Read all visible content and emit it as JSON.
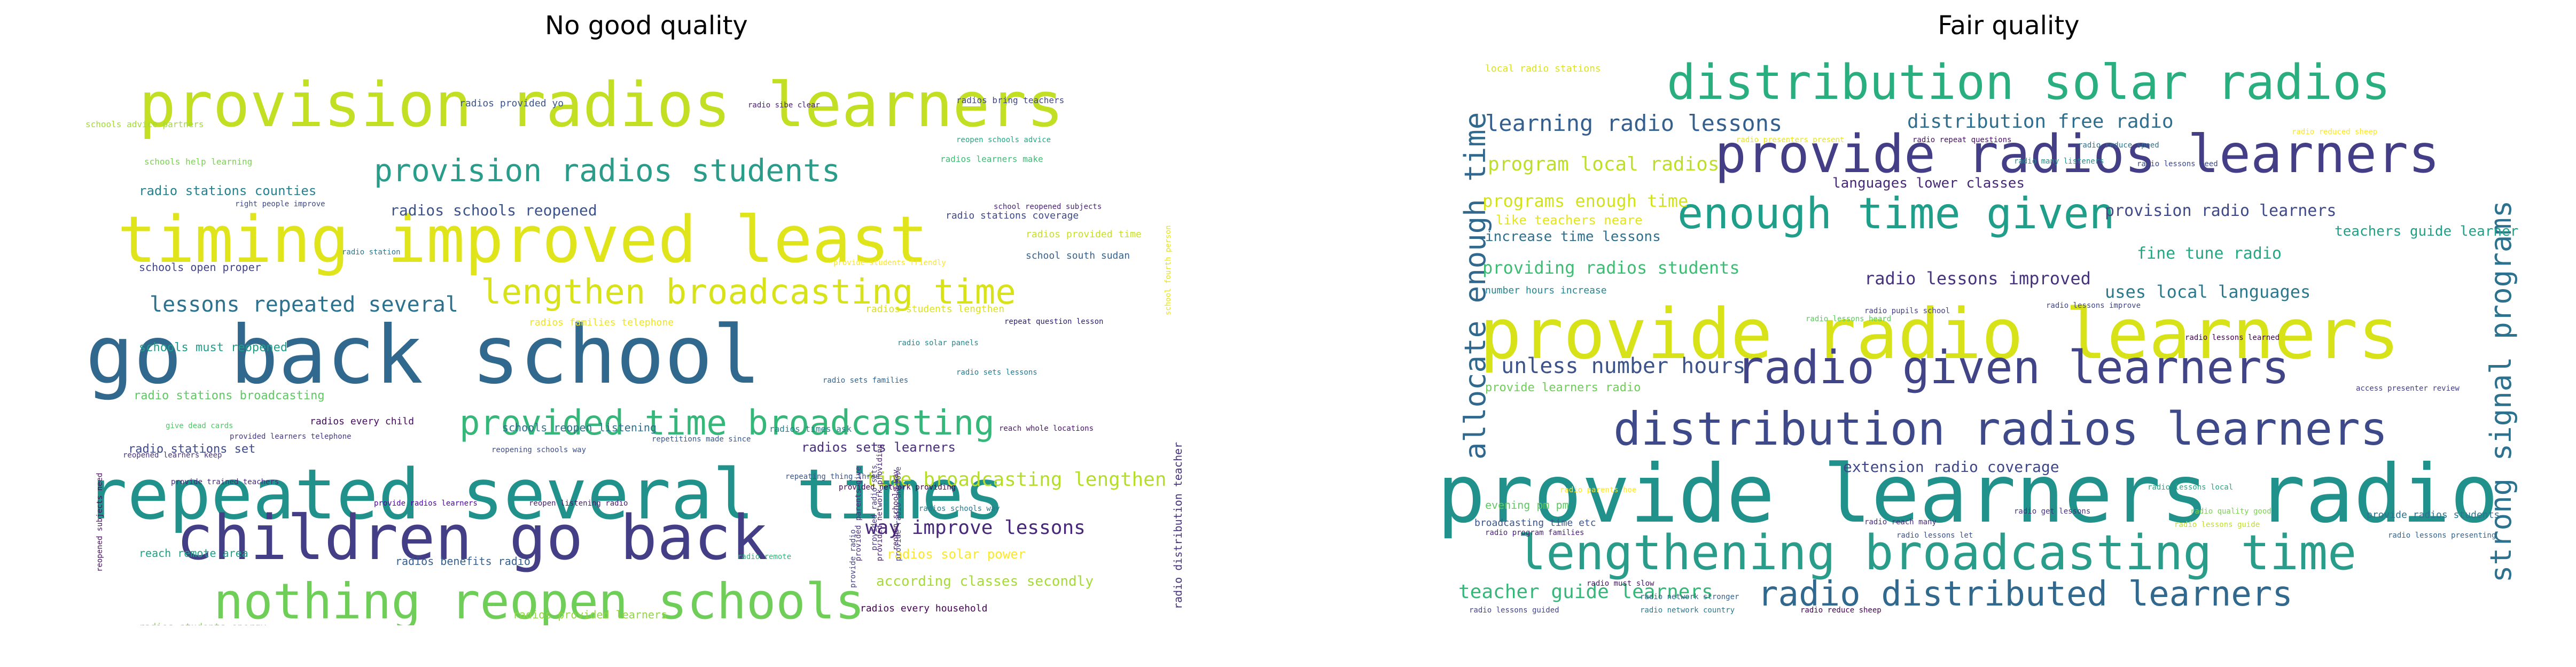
{
  "panels": [
    {
      "title": "No good quality",
      "words": [
        {
          "text": "repeated several times",
          "size": 130,
          "color": "#21918c"
        },
        {
          "text": "go back school",
          "size": 150,
          "color": "#31688e"
        },
        {
          "text": "timing improved least",
          "size": 120,
          "color": "#e0e41a"
        },
        {
          "text": "provision radios learners",
          "size": 115,
          "color": "#c2df23"
        },
        {
          "text": "children go back",
          "size": 115,
          "color": "#433e85"
        },
        {
          "text": "nothing reopen schools",
          "size": 92,
          "color": "#6ece58"
        },
        {
          "text": "provided time broadcasting",
          "size": 64,
          "color": "#35b779"
        },
        {
          "text": "lengthen broadcasting time",
          "size": 64,
          "color": "#d8e219"
        },
        {
          "text": "provision radios students",
          "size": 58,
          "color": "#2a9d8a"
        },
        {
          "text": "lessons repeated several",
          "size": 40,
          "color": "#2c728e"
        },
        {
          "text": "time broadcasting lengthen",
          "size": 36,
          "color": "#b5de2b"
        },
        {
          "text": "way improve lessons",
          "size": 36,
          "color": "#482878"
        },
        {
          "text": "radios schools reopened",
          "size": 28,
          "color": "#3b528b"
        },
        {
          "text": "radio stations counties",
          "size": 24,
          "color": "#26828e"
        },
        {
          "text": "according classes secondly",
          "size": 26,
          "color": "#a5db36"
        },
        {
          "text": "radios solar power",
          "size": 24,
          "color": "#fde725"
        },
        {
          "text": "radios sets learners",
          "size": 24,
          "color": "#472d7b"
        },
        {
          "text": "radio stations broadcasting",
          "size": 22,
          "color": "#5ec962"
        },
        {
          "text": "schools must reopened",
          "size": 22,
          "color": "#1f9e89"
        },
        {
          "text": "radio stations set",
          "size": 22,
          "color": "#3e4989"
        },
        {
          "text": "reach remote area",
          "size": 20,
          "color": "#1fa187"
        },
        {
          "text": "schools open proper",
          "size": 20,
          "color": "#414487"
        },
        {
          "text": "radios benefits radio",
          "size": 20,
          "color": "#355f8d"
        },
        {
          "text": "schools reopen listening",
          "size": 20,
          "color": "#2e6e8e"
        },
        {
          "text": "radio distribution teacher",
          "size": 20,
          "color": "#46327e"
        },
        {
          "text": "radios provided learners",
          "size": 20,
          "color": "#90d743"
        },
        {
          "text": "radios every household",
          "size": 18,
          "color": "#440154"
        },
        {
          "text": "radios stations part",
          "size": 20,
          "color": "#bddf26"
        },
        {
          "text": "radios distributed schools",
          "size": 18,
          "color": "#d2e21b"
        },
        {
          "text": "radios students energy",
          "size": 18,
          "color": "#86d549"
        },
        {
          "text": "radios provided time",
          "size": 18,
          "color": "#c8e020"
        },
        {
          "text": "radio stations coverage",
          "size": 18,
          "color": "#3f4788"
        },
        {
          "text": "school south sudan",
          "size": 18,
          "color": "#34618d"
        },
        {
          "text": "radios students lengthen",
          "size": 18,
          "color": "#dde318"
        },
        {
          "text": "radios families telephone",
          "size": 18,
          "color": "#efe51c"
        },
        {
          "text": "radios provided yo",
          "size": 18,
          "color": "#3a548c"
        },
        {
          "text": "radios bring teachers",
          "size": 16,
          "color": "#404588"
        },
        {
          "text": "radio sibe clear",
          "size": 14,
          "color": "#481f70"
        },
        {
          "text": "radios learners make",
          "size": 16,
          "color": "#3dbc74"
        },
        {
          "text": "schools advice partners",
          "size": 16,
          "color": "#a2da37"
        },
        {
          "text": "schools help learning",
          "size": 16,
          "color": "#7ad151"
        },
        {
          "text": "reopen schools advice",
          "size": 14,
          "color": "#22a884"
        },
        {
          "text": "right people improve",
          "size": 14,
          "color": "#3e4a89"
        },
        {
          "text": "radios every child",
          "size": 18,
          "color": "#460b5e"
        },
        {
          "text": "radio solar panels",
          "size": 14,
          "color": "#24868e"
        },
        {
          "text": "repeat question lesson",
          "size": 14,
          "color": "#2d1e6e"
        },
        {
          "text": "radios times ask",
          "size": 16,
          "color": "#27808e"
        },
        {
          "text": "reopened learners keep",
          "size": 14,
          "color": "#463480"
        },
        {
          "text": "provided learners telephone",
          "size": 14,
          "color": "#443983"
        },
        {
          "text": "repetitions made since",
          "size": 14,
          "color": "#38598c"
        },
        {
          "text": "repeating thing three",
          "size": 14,
          "color": "#39568c"
        },
        {
          "text": "provided network providing",
          "size": 14,
          "color": "#440256"
        },
        {
          "text": "radios schools way",
          "size": 14,
          "color": "#2a788e"
        },
        {
          "text": "provide trained teachers",
          "size": 14,
          "color": "#472a7a"
        },
        {
          "text": "reach whole locations",
          "size": 14,
          "color": "#481668"
        },
        {
          "text": "school reopened subjects",
          "size": 14,
          "color": "#482475"
        },
        {
          "text": "provide students friendly",
          "size": 14,
          "color": "#fbe723"
        },
        {
          "text": "reopening schools way",
          "size": 14,
          "color": "#3c4f8a"
        },
        {
          "text": "radio station",
          "size": 14,
          "color": "#2b758e"
        },
        {
          "text": "provide radio",
          "size": 14,
          "color": "#423f85"
        },
        {
          "text": "reopen schools way",
          "size": 14,
          "color": "#47186a"
        },
        {
          "text": "reopen listening radio",
          "size": 14,
          "color": "#481b6d"
        },
        {
          "text": "provide radios learners",
          "size": 14,
          "color": "#4c02a1"
        },
        {
          "text": "radio remote",
          "size": 14,
          "color": "#31b57b"
        },
        {
          "text": "give dead cards",
          "size": 14,
          "color": "#52c569"
        },
        {
          "text": "radio sets families",
          "size": 14,
          "color": "#32648e"
        },
        {
          "text": "radio sets lessons",
          "size": 14,
          "color": "#29798e"
        },
        {
          "text": "school fourth person",
          "size": 14,
          "color": "#e5e419"
        },
        {
          "text": "reopened subjects need",
          "size": 14,
          "color": "#440f5b"
        },
        {
          "text": "provided parents give",
          "size": 14,
          "color": "#472f7d"
        },
        {
          "text": "provided network providing",
          "size": 14,
          "color": "#482071"
        },
        {
          "text": "provided radio sets",
          "size": 14,
          "color": "#453882"
        },
        {
          "text": "provide radio anymore",
          "size": 14,
          "color": "#424086"
        }
      ]
    },
    {
      "title": "Fair quality",
      "words": [
        {
          "text": "provide learners radio",
          "size": 150,
          "color": "#21918c"
        },
        {
          "text": "provide radio learners",
          "size": 130,
          "color": "#d8e219"
        },
        {
          "text": "provide radios learners",
          "size": 98,
          "color": "#433e85"
        },
        {
          "text": "distribution solar radios",
          "size": 90,
          "color": "#29af7f"
        },
        {
          "text": "lengthening broadcasting time",
          "size": 90,
          "color": "#2a9d8a"
        },
        {
          "text": "distribution radios learners",
          "size": 86,
          "color": "#3e4989"
        },
        {
          "text": "radio given learners",
          "size": 86,
          "color": "#414487"
        },
        {
          "text": "enough time given",
          "size": 80,
          "color": "#1f9e89"
        },
        {
          "text": "radio distributed learners",
          "size": 64,
          "color": "#31688e"
        },
        {
          "text": "allocate enough time",
          "size": 54,
          "color": "#31688e"
        },
        {
          "text": "strong signal programs",
          "size": 54,
          "color": "#2c728e"
        },
        {
          "text": "learning radio lessons",
          "size": 42,
          "color": "#355f8d"
        },
        {
          "text": "distribution free radio",
          "size": 36,
          "color": "#2e6e8e"
        },
        {
          "text": "program local radios",
          "size": 36,
          "color": "#bddf26"
        },
        {
          "text": "teacher guide learners",
          "size": 36,
          "color": "#35b779"
        },
        {
          "text": "unless number hours",
          "size": 40,
          "color": "#3b528b"
        },
        {
          "text": "programs enough time",
          "size": 32,
          "color": "#d2e21b"
        },
        {
          "text": "providing radios students",
          "size": 32,
          "color": "#3dbc74"
        },
        {
          "text": "radio lessons improved",
          "size": 32,
          "color": "#46327e"
        },
        {
          "text": "uses local languages",
          "size": 32,
          "color": "#2a788e"
        },
        {
          "text": "provision radio learners",
          "size": 30,
          "color": "#3e4a89"
        },
        {
          "text": "fine tune radio",
          "size": 30,
          "color": "#22a884"
        },
        {
          "text": "increase time lessons",
          "size": 26,
          "color": "#2d708e"
        },
        {
          "text": "extension radio coverage",
          "size": 28,
          "color": "#3f4788"
        },
        {
          "text": "languages lower classes",
          "size": 26,
          "color": "#482878"
        },
        {
          "text": "teachers guide learner",
          "size": 26,
          "color": "#1fa187"
        },
        {
          "text": "like teachers neare",
          "size": 24,
          "color": "#e5e419"
        },
        {
          "text": "provide learners radio",
          "size": 22,
          "color": "#6ece58"
        },
        {
          "text": "number hours increase",
          "size": 18,
          "color": "#26828e"
        },
        {
          "text": "evening pm pm",
          "size": 20,
          "color": "#5ec962"
        },
        {
          "text": "broadcasting time etc",
          "size": 18,
          "color": "#3a548c"
        },
        {
          "text": "provide radios students",
          "size": 18,
          "color": "#2c728e"
        },
        {
          "text": "local radio stations",
          "size": 18,
          "color": "#dde318"
        },
        {
          "text": "radio pupils school",
          "size": 14,
          "color": "#433e85"
        },
        {
          "text": "radio lessons local",
          "size": 14,
          "color": "#22a884"
        },
        {
          "text": "radio reach many",
          "size": 14,
          "color": "#472d7b"
        },
        {
          "text": "radio lessons let",
          "size": 14,
          "color": "#3b528b"
        },
        {
          "text": "radio lessons guided",
          "size": 14,
          "color": "#414487"
        },
        {
          "text": "radio network country",
          "size": 14,
          "color": "#2a788e"
        },
        {
          "text": "radio reduce sheep",
          "size": 14,
          "color": "#440154"
        },
        {
          "text": "radio must slow",
          "size": 14,
          "color": "#481668"
        },
        {
          "text": "radio network stronger",
          "size": 14,
          "color": "#355f8d"
        },
        {
          "text": "radio lessons guide",
          "size": 14,
          "color": "#bddf26"
        },
        {
          "text": "radio lessons presenting",
          "size": 14,
          "color": "#32648e"
        },
        {
          "text": "radio program families",
          "size": 14,
          "color": "#482475"
        },
        {
          "text": "radio parents hoe",
          "size": 14,
          "color": "#fde725"
        },
        {
          "text": "radio lessons improve",
          "size": 14,
          "color": "#3f4788"
        },
        {
          "text": "radio lessons heard",
          "size": 14,
          "color": "#5ec962"
        },
        {
          "text": "radio presenters present",
          "size": 14,
          "color": "#ece51b"
        },
        {
          "text": "radio repeat questions",
          "size": 14,
          "color": "#471063"
        },
        {
          "text": "radio reduce speed",
          "size": 14,
          "color": "#2c728e"
        },
        {
          "text": "radio lessons need",
          "size": 14,
          "color": "#3e4989"
        },
        {
          "text": "radio reduced sheep",
          "size": 14,
          "color": "#fbe723"
        },
        {
          "text": "radio many listeners",
          "size": 14,
          "color": "#21918c"
        },
        {
          "text": "access presenter review",
          "size": 14,
          "color": "#433e85"
        },
        {
          "text": "radio get lessons",
          "size": 14,
          "color": "#46327e"
        },
        {
          "text": "radio quality good",
          "size": 14,
          "color": "#7ad151"
        },
        {
          "text": "radio lessons learned",
          "size": 14,
          "color": "#440154"
        }
      ]
    }
  ]
}
